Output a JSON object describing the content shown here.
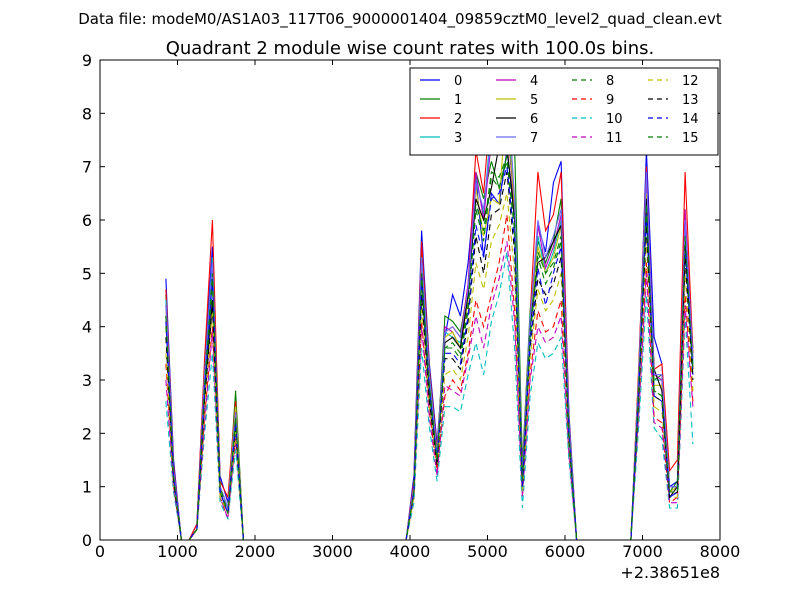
{
  "figure": {
    "suptitle": "Data file: modeM0/AS1A03_117T06_9000001404_09859cztM0_level2_quad_clean.evt",
    "x_offset_label": "+2.38651e8"
  },
  "chart_data": {
    "type": "line",
    "title": "Quadrant 2 module wise count rates with 100.0s bins.",
    "xlabel": "",
    "ylabel": "",
    "xlim": [
      0,
      8000
    ],
    "ylim": [
      0,
      9
    ],
    "x_ticks": [
      "0",
      "1000",
      "2000",
      "3000",
      "4000",
      "5000",
      "6000",
      "7000",
      "8000"
    ],
    "y_ticks": [
      "0",
      "1",
      "2",
      "3",
      "4",
      "5",
      "6",
      "7",
      "8",
      "9"
    ],
    "grid": false,
    "legend_position": "top-right",
    "x": [
      850,
      950,
      1050,
      1150,
      1250,
      1350,
      1450,
      1550,
      1650,
      1750,
      1850,
      1950,
      2050,
      2150,
      2250,
      2350,
      2450,
      2550,
      2650,
      2750,
      2850,
      2950,
      3050,
      3150,
      3250,
      3350,
      3450,
      3550,
      3650,
      3750,
      3850,
      3950,
      4050,
      4150,
      4250,
      4350,
      4450,
      4550,
      4650,
      4750,
      4850,
      4950,
      5050,
      5150,
      5250,
      5350,
      5450,
      5550,
      5650,
      5750,
      5850,
      5950,
      6050,
      6150,
      6250,
      6350,
      6450,
      6550,
      6650,
      6750,
      6850,
      6950,
      7050,
      7150,
      7250,
      7350,
      7450,
      7550,
      7650
    ],
    "series": [
      {
        "name": "0",
        "color": "#0000ff",
        "dash": "solid",
        "values": [
          4.9,
          1.5,
          0.0,
          0.0,
          0.3,
          3.3,
          5.5,
          1.2,
          0.7,
          2.6,
          0.0,
          0,
          0,
          0,
          0,
          0,
          0,
          0,
          0,
          0,
          0,
          0,
          0,
          0,
          0,
          0,
          0,
          0,
          0,
          0,
          0,
          0,
          1.2,
          5.8,
          3.3,
          1.8,
          3.8,
          4.6,
          4.2,
          5.2,
          6.8,
          5.3,
          6.5,
          6.3,
          7.3,
          6.2,
          1.2,
          4.0,
          5.9,
          5.4,
          6.7,
          7.1,
          2.4,
          0,
          0,
          0,
          0,
          0,
          0,
          0,
          0,
          3.0,
          7.3,
          3.8,
          3.3,
          1.0,
          1.1,
          6.1,
          3.3
        ]
      },
      {
        "name": "1",
        "color": "#008000",
        "dash": "solid",
        "values": [
          4.6,
          1.3,
          0.0,
          0.0,
          0.2,
          3.0,
          5.0,
          1.0,
          0.6,
          2.8,
          0.0,
          0,
          0,
          0,
          0,
          0,
          0,
          0,
          0,
          0,
          0,
          0,
          0,
          0,
          0,
          0,
          0,
          0,
          0,
          0,
          0,
          0,
          1.0,
          5.4,
          3.0,
          1.6,
          4.2,
          4.1,
          3.9,
          4.7,
          6.9,
          6.4,
          7.1,
          6.6,
          7.2,
          7.4,
          1.4,
          4.3,
          5.6,
          5.2,
          5.6,
          6.4,
          2.2,
          0,
          0,
          0,
          0,
          0,
          0,
          0,
          0,
          3.1,
          6.9,
          3.0,
          3.1,
          0.9,
          1.1,
          6.0,
          3.6
        ]
      },
      {
        "name": "2",
        "color": "#ff0000",
        "dash": "solid",
        "values": [
          4.7,
          1.4,
          0.0,
          0.0,
          0.3,
          3.4,
          6.0,
          1.1,
          0.8,
          2.6,
          0.0,
          0,
          0,
          0,
          0,
          0,
          0,
          0,
          0,
          0,
          0,
          0,
          0,
          0,
          0,
          0,
          0,
          0,
          0,
          0,
          0,
          0,
          1.1,
          5.6,
          3.2,
          1.7,
          3.9,
          4.0,
          3.8,
          4.8,
          7.3,
          6.5,
          8.3,
          8.3,
          7.9,
          6.2,
          1.3,
          4.2,
          6.9,
          5.8,
          6.1,
          6.9,
          2.3,
          0,
          0,
          0,
          0,
          0,
          0,
          0,
          0,
          3.2,
          7.0,
          3.2,
          3.3,
          1.3,
          1.5,
          6.9,
          3.5
        ]
      },
      {
        "name": "3",
        "color": "#00bfbf",
        "dash": "solid",
        "values": [
          4.5,
          1.3,
          0.0,
          0.0,
          0.2,
          3.1,
          5.3,
          1.0,
          0.6,
          2.5,
          0.0,
          0,
          0,
          0,
          0,
          0,
          0,
          0,
          0,
          0,
          0,
          0,
          0,
          0,
          0,
          0,
          0,
          0,
          0,
          0,
          0,
          0,
          1.0,
          5.3,
          3.1,
          1.6,
          3.9,
          3.8,
          3.7,
          4.6,
          6.8,
          6.1,
          7.9,
          7.6,
          8.0,
          6.3,
          1.2,
          4.2,
          5.7,
          5.0,
          5.4,
          6.0,
          2.2,
          0,
          0,
          0,
          0,
          0,
          0,
          0,
          0,
          3.0,
          6.6,
          3.0,
          3.0,
          1.0,
          1.0,
          5.8,
          3.3
        ]
      },
      {
        "name": "4",
        "color": "#bf00bf",
        "dash": "solid",
        "values": [
          4.4,
          1.2,
          0.0,
          0.0,
          0.2,
          3.0,
          5.2,
          1.0,
          0.6,
          2.4,
          0.0,
          0,
          0,
          0,
          0,
          0,
          0,
          0,
          0,
          0,
          0,
          0,
          0,
          0,
          0,
          0,
          0,
          0,
          0,
          0,
          0,
          0,
          1.0,
          5.2,
          3.0,
          1.5,
          4.0,
          3.9,
          3.6,
          4.8,
          6.9,
          6.0,
          7.5,
          7.8,
          8.7,
          6.3,
          1.2,
          4.1,
          5.9,
          5.1,
          5.5,
          6.1,
          2.1,
          0,
          0,
          0,
          0,
          0,
          0,
          0,
          0,
          2.9,
          6.8,
          3.1,
          3.0,
          1.0,
          1.0,
          6.2,
          3.4
        ]
      },
      {
        "name": "5",
        "color": "#bfbf00",
        "dash": "solid",
        "values": [
          4.3,
          1.2,
          0.0,
          0.0,
          0.2,
          2.9,
          5.1,
          1.0,
          0.6,
          2.5,
          0.0,
          0,
          0,
          0,
          0,
          0,
          0,
          0,
          0,
          0,
          0,
          0,
          0,
          0,
          0,
          0,
          0,
          0,
          0,
          0,
          0,
          0,
          1.0,
          5.1,
          2.9,
          1.6,
          3.8,
          3.9,
          3.6,
          4.5,
          6.6,
          5.7,
          6.4,
          6.3,
          8.4,
          6.2,
          1.1,
          4.0,
          5.5,
          5.0,
          5.3,
          5.9,
          2.1,
          0,
          0,
          0,
          0,
          0,
          0,
          0,
          0,
          2.9,
          6.5,
          2.9,
          2.9,
          0.9,
          1.0,
          5.7,
          3.2
        ]
      },
      {
        "name": "6",
        "color": "#000000",
        "dash": "solid",
        "values": [
          4.2,
          1.2,
          0.0,
          0.0,
          0.2,
          2.8,
          4.5,
          0.9,
          0.5,
          2.3,
          0.0,
          0,
          0,
          0,
          0,
          0,
          0,
          0,
          0,
          0,
          0,
          0,
          0,
          0,
          0,
          0,
          0,
          0,
          0,
          0,
          0,
          0,
          0.9,
          5.0,
          2.8,
          1.5,
          3.7,
          3.8,
          3.6,
          4.6,
          6.4,
          6.0,
          6.6,
          7.4,
          7.4,
          6.0,
          1.1,
          4.0,
          5.2,
          5.3,
          5.6,
          5.9,
          2.1,
          0,
          0,
          0,
          0,
          0,
          0,
          0,
          0,
          2.8,
          6.4,
          3.2,
          2.8,
          0.8,
          1.0,
          5.6,
          3.2
        ]
      },
      {
        "name": "7",
        "color": "#6b6bff",
        "dash": "solid",
        "values": [
          4.4,
          1.3,
          0.0,
          0.0,
          0.2,
          3.1,
          5.2,
          1.0,
          0.6,
          2.4,
          0.0,
          0,
          0,
          0,
          0,
          0,
          0,
          0,
          0,
          0,
          0,
          0,
          0,
          0,
          0,
          0,
          0,
          0,
          0,
          0,
          0,
          0,
          1.0,
          5.3,
          3.0,
          1.6,
          3.9,
          4.0,
          3.8,
          4.7,
          6.7,
          6.2,
          7.6,
          8.5,
          8.6,
          6.4,
          1.2,
          4.1,
          6.0,
          5.3,
          5.7,
          6.2,
          2.2,
          0,
          0,
          0,
          0,
          0,
          0,
          0,
          0,
          3.0,
          6.9,
          3.1,
          3.1,
          1.0,
          1.0,
          6.0,
          3.4
        ]
      },
      {
        "name": "8",
        "color": "#008000",
        "dash": "dashed",
        "values": [
          4.0,
          1.1,
          0.0,
          0.0,
          0.2,
          2.7,
          4.8,
          0.9,
          0.5,
          2.2,
          0.0,
          0,
          0,
          0,
          0,
          0,
          0,
          0,
          0,
          0,
          0,
          0,
          0,
          0,
          0,
          0,
          0,
          0,
          0,
          0,
          0,
          0,
          0.9,
          4.8,
          2.7,
          1.5,
          3.6,
          3.6,
          3.4,
          4.3,
          6.2,
          5.6,
          6.8,
          6.6,
          7.1,
          5.8,
          1.0,
          3.8,
          5.3,
          4.8,
          5.1,
          5.6,
          2.0,
          0,
          0,
          0,
          0,
          0,
          0,
          0,
          0,
          2.7,
          6.2,
          2.8,
          2.7,
          0.8,
          0.9,
          5.4,
          3.1
        ]
      },
      {
        "name": "9",
        "color": "#ff0000",
        "dash": "dashed",
        "values": [
          3.3,
          1.0,
          0.0,
          0.0,
          0.2,
          2.3,
          4.0,
          0.8,
          0.4,
          1.9,
          0.0,
          0,
          0,
          0,
          0,
          0,
          0,
          0,
          0,
          0,
          0,
          0,
          0,
          0,
          0,
          0,
          0,
          0,
          0,
          0,
          0,
          0,
          0.8,
          4.1,
          2.4,
          1.3,
          2.7,
          3.0,
          2.8,
          3.5,
          4.5,
          4.0,
          4.6,
          5.2,
          6.1,
          4.3,
          0.9,
          3.1,
          4.3,
          3.9,
          4.0,
          4.5,
          1.7,
          0,
          0,
          0,
          0,
          0,
          0,
          0,
          0,
          2.4,
          5.2,
          2.3,
          2.2,
          0.7,
          0.8,
          4.6,
          2.6
        ]
      },
      {
        "name": "10",
        "color": "#00bfbf",
        "dash": "dashed",
        "values": [
          2.6,
          0.9,
          0.0,
          0.0,
          0.2,
          2.0,
          3.5,
          0.7,
          0.4,
          1.7,
          0.0,
          0,
          0,
          0,
          0,
          0,
          0,
          0,
          0,
          0,
          0,
          0,
          0,
          0,
          0,
          0,
          0,
          0,
          0,
          0,
          0,
          0,
          0.7,
          3.6,
          2.1,
          1.1,
          2.5,
          2.5,
          2.4,
          3.1,
          3.7,
          3.1,
          4.1,
          4.6,
          5.4,
          3.6,
          0.6,
          2.7,
          3.7,
          3.4,
          3.5,
          3.8,
          1.5,
          0,
          0,
          0,
          0,
          0,
          0,
          0,
          0,
          2.1,
          4.6,
          2.1,
          1.9,
          0.6,
          0.6,
          4.2,
          1.8
        ]
      },
      {
        "name": "11",
        "color": "#bf00bf",
        "dash": "dashed",
        "values": [
          3.0,
          1.0,
          0.0,
          0.0,
          0.2,
          2.2,
          3.9,
          0.8,
          0.4,
          1.9,
          0.0,
          0,
          0,
          0,
          0,
          0,
          0,
          0,
          0,
          0,
          0,
          0,
          0,
          0,
          0,
          0,
          0,
          0,
          0,
          0,
          0,
          0,
          0.8,
          4.0,
          2.3,
          1.2,
          2.9,
          2.8,
          2.7,
          3.4,
          4.2,
          3.6,
          4.4,
          4.9,
          5.6,
          4.1,
          0.8,
          3.0,
          4.0,
          3.7,
          3.8,
          4.2,
          1.6,
          0,
          0,
          0,
          0,
          0,
          0,
          0,
          0,
          2.3,
          5.0,
          2.2,
          2.1,
          0.7,
          0.7,
          4.4,
          2.5
        ]
      },
      {
        "name": "12",
        "color": "#bfbf00",
        "dash": "dashed",
        "values": [
          3.5,
          1.1,
          0.0,
          0.0,
          0.2,
          2.5,
          4.3,
          0.8,
          0.5,
          2.0,
          0.0,
          0,
          0,
          0,
          0,
          0,
          0,
          0,
          0,
          0,
          0,
          0,
          0,
          0,
          0,
          0,
          0,
          0,
          0,
          0,
          0,
          0,
          0.8,
          4.4,
          2.5,
          1.4,
          3.1,
          3.2,
          3.0,
          3.8,
          5.2,
          4.7,
          5.6,
          5.9,
          6.5,
          5.0,
          0.9,
          3.4,
          4.7,
          4.3,
          4.5,
          5.0,
          1.8,
          0,
          0,
          0,
          0,
          0,
          0,
          0,
          0,
          2.5,
          5.6,
          2.5,
          2.4,
          0.8,
          0.8,
          5.0,
          2.8
        ]
      },
      {
        "name": "13",
        "color": "#000000",
        "dash": "dashed",
        "values": [
          3.8,
          1.1,
          0.0,
          0.0,
          0.2,
          2.6,
          4.4,
          0.9,
          0.5,
          2.1,
          0.0,
          0,
          0,
          0,
          0,
          0,
          0,
          0,
          0,
          0,
          0,
          0,
          0,
          0,
          0,
          0,
          0,
          0,
          0,
          0,
          0,
          0,
          0.9,
          4.6,
          2.6,
          1.4,
          3.4,
          3.4,
          3.2,
          4.1,
          5.7,
          5.0,
          6.1,
          6.2,
          6.9,
          5.4,
          1.0,
          3.6,
          4.9,
          4.6,
          4.8,
          5.3,
          1.9,
          0,
          0,
          0,
          0,
          0,
          0,
          0,
          0,
          2.6,
          5.9,
          2.7,
          2.6,
          0.8,
          0.9,
          5.3,
          3.0
        ]
      },
      {
        "name": "14",
        "color": "#0000ff",
        "dash": "dashed",
        "values": [
          4.1,
          1.2,
          0.0,
          0.0,
          0.2,
          2.8,
          4.9,
          0.9,
          0.5,
          2.2,
          0.0,
          0,
          0,
          0,
          0,
          0,
          0,
          0,
          0,
          0,
          0,
          0,
          0,
          0,
          0,
          0,
          0,
          0,
          0,
          0,
          0,
          0,
          0.9,
          4.9,
          2.8,
          1.5,
          3.5,
          3.5,
          3.3,
          4.2,
          5.9,
          5.3,
          6.4,
          6.5,
          7.0,
          5.6,
          1.0,
          3.7,
          5.1,
          4.4,
          5.0,
          5.5,
          2.0,
          0,
          0,
          0,
          0,
          0,
          0,
          0,
          0,
          2.7,
          6.1,
          2.7,
          2.6,
          0.8,
          0.9,
          5.5,
          3.1
        ]
      },
      {
        "name": "15",
        "color": "#008000",
        "dash": "dashed",
        "values": [
          4.2,
          1.2,
          0.0,
          0.0,
          0.2,
          2.9,
          5.0,
          1.0,
          0.5,
          2.3,
          0.0,
          0,
          0,
          0,
          0,
          0,
          0,
          0,
          0,
          0,
          0,
          0,
          0,
          0,
          0,
          0,
          0,
          0,
          0,
          0,
          0,
          0,
          0.9,
          5.0,
          2.9,
          1.5,
          3.6,
          3.7,
          3.5,
          4.4,
          6.3,
          5.8,
          6.9,
          6.8,
          7.2,
          5.9,
          1.1,
          3.9,
          5.4,
          5.0,
          5.2,
          5.7,
          2.0,
          0,
          0,
          0,
          0,
          0,
          0,
          0,
          0,
          2.8,
          6.3,
          2.8,
          2.7,
          0.9,
          0.9,
          5.7,
          3.2
        ]
      }
    ]
  }
}
